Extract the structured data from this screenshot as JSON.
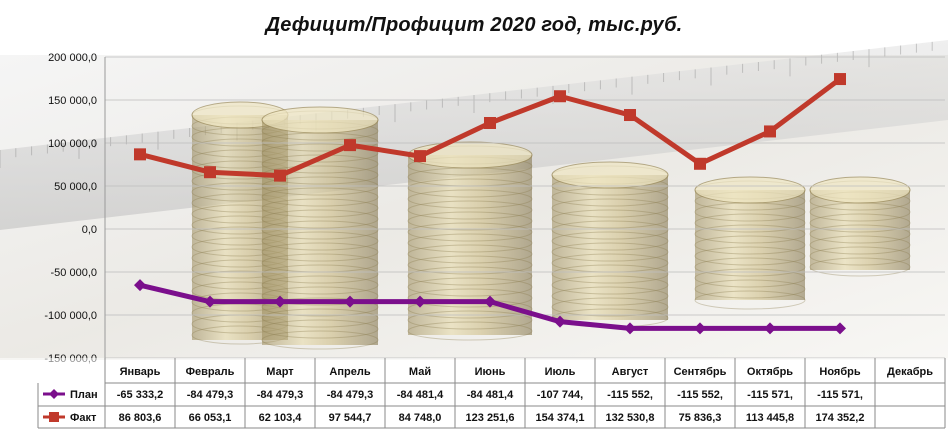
{
  "chart_data": {
    "type": "line",
    "title": "Дефицит/Профицит 2020 год, тыс.руб.",
    "categories": [
      "Январь",
      "Февраль",
      "Март",
      "Апрель",
      "Май",
      "Июнь",
      "Июль",
      "Август",
      "Сентябрь",
      "Октябрь",
      "Ноябрь",
      "Декабрь"
    ],
    "ylim": [
      -150000,
      200000
    ],
    "y_ticks": [
      200000,
      150000,
      100000,
      50000,
      0,
      -50000,
      -100000,
      -150000
    ],
    "y_tick_labels": [
      "200 000,0",
      "150 000,0",
      "100 000,0",
      "50 000,0",
      "0,0",
      "-50 000,0",
      "-100 000,0",
      "-150 000,0"
    ],
    "grid": true,
    "legend_placement": "data-table-left",
    "series": [
      {
        "name": "План",
        "color": "#7B0F8C",
        "marker": "diamond",
        "values": [
          -65333.2,
          -84479.3,
          -84479.3,
          -84479.3,
          -84481.4,
          -84481.4,
          -107744,
          -115552,
          -115552,
          -115571,
          -115571,
          null
        ],
        "labels": [
          "-65 333,2",
          "-84 479,3",
          "-84 479,3",
          "-84 479,3",
          "-84 481,4",
          "-84 481,4",
          "-107 744,",
          "-115 552,",
          "-115 552,",
          "-115 571,",
          "-115 571,",
          ""
        ]
      },
      {
        "name": "Факт",
        "color": "#C0392B",
        "marker": "square",
        "values": [
          86803.6,
          66053.1,
          62103.4,
          97544.7,
          84748.0,
          123251.6,
          154374.1,
          132530.8,
          75836.3,
          113445.8,
          174352.2,
          null
        ],
        "labels": [
          "86 803,6",
          "66 053,1",
          "62 103,4",
          "97 544,7",
          "84 748,0",
          "123 251,6",
          "154 374,1",
          "132 530,8",
          "75 836,3",
          "113 445,8",
          "174 352,2",
          ""
        ]
      }
    ]
  }
}
